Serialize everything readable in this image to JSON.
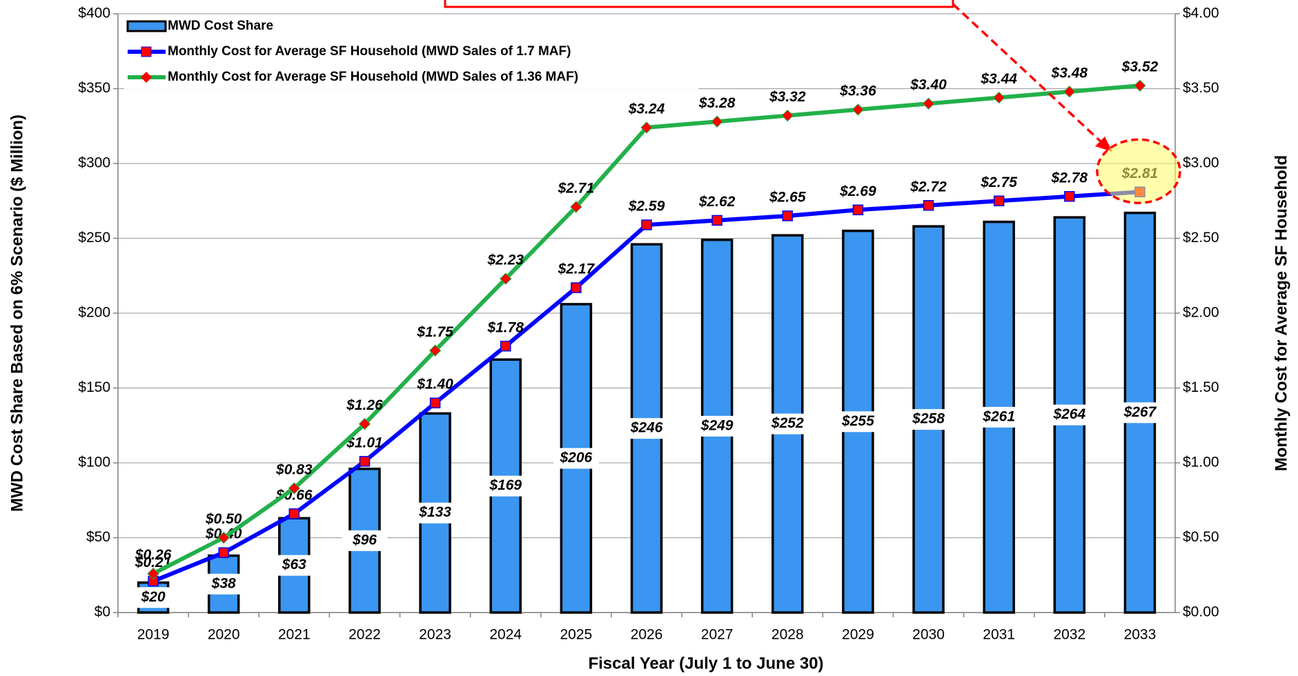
{
  "chart_data": {
    "type": "bar",
    "categories": [
      "2019",
      "2020",
      "2021",
      "2022",
      "2023",
      "2024",
      "2025",
      "2026",
      "2027",
      "2028",
      "2029",
      "2030",
      "2031",
      "2032",
      "2033"
    ],
    "xlabel": "Fiscal Year (July 1 to June 30)",
    "ylabel": "MWD Cost Share Based on 6% Scenario ($ Million)",
    "y2label": "Monthly Cost for Average SF Household",
    "ylim": [
      0,
      400
    ],
    "yticks": [
      {
        "value": 0,
        "label": "$0"
      },
      {
        "value": 50,
        "label": "$50"
      },
      {
        "value": 100,
        "label": "$100"
      },
      {
        "value": 150,
        "label": "$150"
      },
      {
        "value": 200,
        "label": "$200"
      },
      {
        "value": 250,
        "label": "$250"
      },
      {
        "value": 300,
        "label": "$300"
      },
      {
        "value": 350,
        "label": "$350"
      },
      {
        "value": 400,
        "label": "$400"
      }
    ],
    "y2lim": [
      0,
      4
    ],
    "y2ticks": [
      {
        "value": 0,
        "label": "$0.00"
      },
      {
        "value": 0.5,
        "label": "$0.50"
      },
      {
        "value": 1,
        "label": "$1.00"
      },
      {
        "value": 1.5,
        "label": "$1.50"
      },
      {
        "value": 2,
        "label": "$2.00"
      },
      {
        "value": 2.5,
        "label": "$2.50"
      },
      {
        "value": 3,
        "label": "$3.00"
      },
      {
        "value": 3.5,
        "label": "$3.50"
      },
      {
        "value": 4,
        "label": "$4.00"
      }
    ],
    "grid": true,
    "legend": "upper left",
    "series": [
      {
        "name": "MWD Cost Share",
        "type": "bar",
        "color": "#3a96f0",
        "values": [
          20,
          38,
          63,
          96,
          133,
          169,
          206,
          246,
          249,
          252,
          255,
          258,
          261,
          264,
          267
        ],
        "value_labels": [
          "$20",
          "$38",
          "$63",
          "$96",
          "$133",
          "$169",
          "$206",
          "$246",
          "$249",
          "$252",
          "$255",
          "$258",
          "$261",
          "$264",
          "$267"
        ]
      },
      {
        "name": "Monthly Cost for Average SF Household (MWD Sales of 1.7 MAF)",
        "type": "line",
        "axis": "y2",
        "color": "#0000ff",
        "marker_color": "#ff0000",
        "values": [
          0.21,
          0.4,
          0.66,
          1.01,
          1.4,
          1.78,
          2.17,
          2.59,
          2.62,
          2.65,
          2.69,
          2.72,
          2.75,
          2.78,
          2.81
        ],
        "value_labels": [
          "$0.21",
          "$0.40",
          "$0.66",
          "$1.01",
          "$1.40",
          "$1.78",
          "$2.17",
          "$2.59",
          "$2.62",
          "$2.65",
          "$2.69",
          "$2.72",
          "$2.75",
          "$2.78",
          "$2.81"
        ]
      },
      {
        "name": "Monthly Cost for Average SF Household (MWD Sales of 1.36 MAF)",
        "type": "line",
        "axis": "y2",
        "color": "#22b04a",
        "marker_color": "#ff0000",
        "values": [
          0.26,
          0.5,
          0.83,
          1.26,
          1.75,
          2.23,
          2.71,
          3.24,
          3.28,
          3.32,
          3.36,
          3.4,
          3.44,
          3.48,
          3.52
        ],
        "value_labels": [
          "$0.26",
          "$0.50",
          "$0.83",
          "$1.26",
          "$1.75",
          "$2.23",
          "$2.71",
          "$3.24",
          "$3.28",
          "$3.32",
          "$3.36",
          "$3.40",
          "$3.44",
          "$3.48",
          "$3.52"
        ]
      }
    ]
  }
}
